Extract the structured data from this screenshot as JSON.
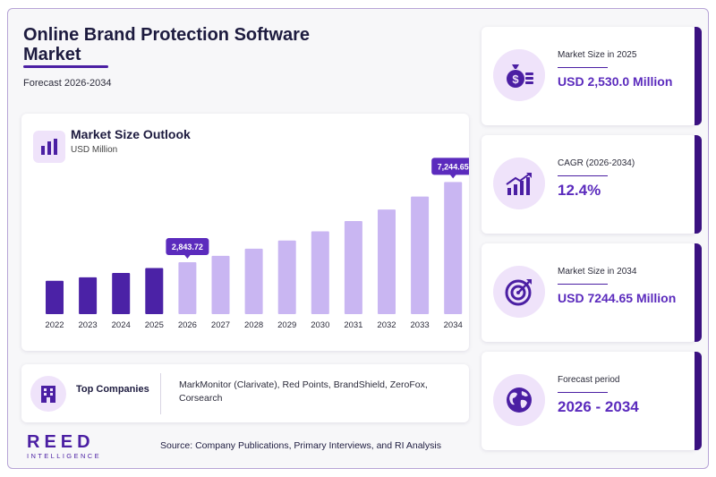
{
  "header": {
    "title": "Online Brand Protection Software Market",
    "subtitle": "Forecast 2026-2034"
  },
  "chart_data": {
    "type": "bar",
    "title": "Market Size Outlook",
    "unit": "USD Million",
    "categories": [
      "2022",
      "2023",
      "2024",
      "2025",
      "2026",
      "2027",
      "2028",
      "2029",
      "2030",
      "2031",
      "2032",
      "2033",
      "2034"
    ],
    "values": [
      1830,
      2020,
      2260,
      2530,
      2843.72,
      3196,
      3592,
      4038,
      4539,
      5102,
      5735,
      6446,
      7244.65
    ],
    "historical_color": "#4b22a6",
    "forecast_color": "#c9b6f2",
    "callout_color": "#5b2bbd",
    "data_labels": [
      {
        "category": "2026",
        "text": "2,843.72"
      },
      {
        "category": "2034",
        "text": "7,244.65"
      }
    ],
    "ylim": [
      0,
      8000
    ],
    "grid": false,
    "legend": "none"
  },
  "companies": {
    "label": "Top Companies",
    "list": "MarkMonitor (Clarivate), Red Points, BrandShield, ZeroFox, Corsearch"
  },
  "stats": [
    {
      "label": "Market Size in 2025",
      "value": "USD 2,530.0 Million",
      "icon": "money-bag-icon"
    },
    {
      "label": "CAGR (2026-2034)",
      "value": "12.4%",
      "icon": "growth-chart-icon"
    },
    {
      "label": "Market Size in 2034",
      "value": "USD 7244.65 Million",
      "icon": "target-icon"
    },
    {
      "label": "Forecast period",
      "value": "2026 - 2034",
      "icon": "globe-icon"
    }
  ],
  "footer": {
    "logo_main": "REED",
    "logo_sub": "INTELLIGENCE",
    "source": "Source: Company Publications, Primary Interviews, and RI Analysis"
  },
  "colors": {
    "accent": "#4b1fa3",
    "title": "#1d1b3f",
    "icon_bg": "#efe3fa"
  }
}
